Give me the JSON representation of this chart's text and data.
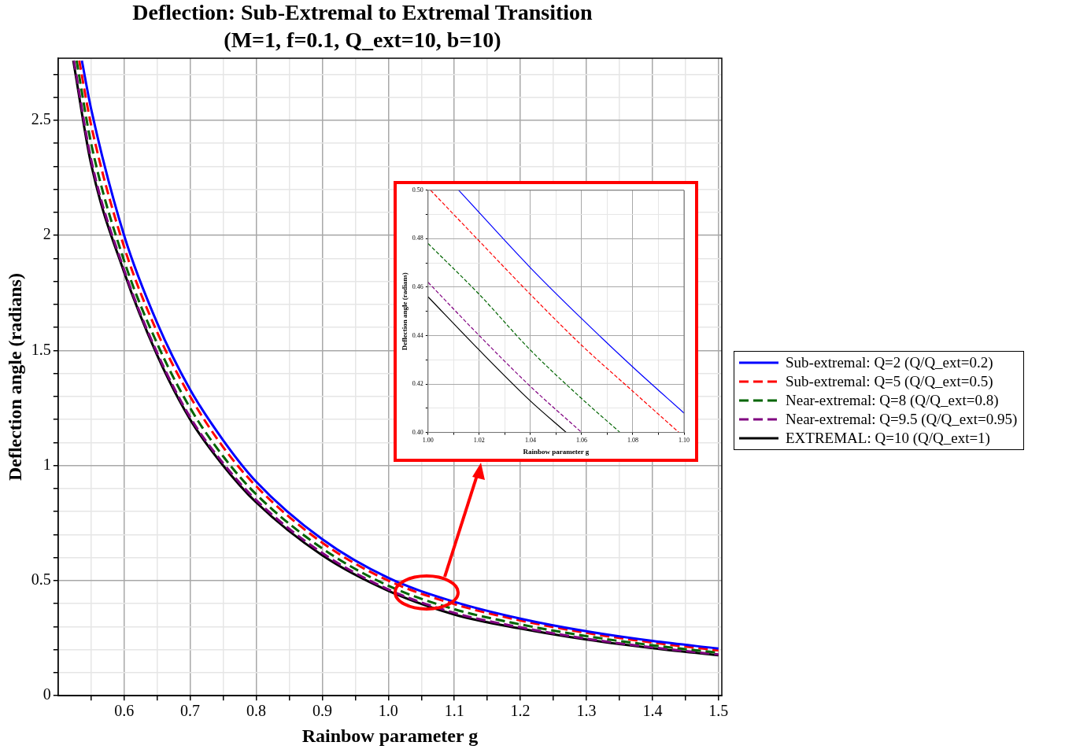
{
  "chart_data": [
    {
      "type": "line",
      "title": "Deflection: Sub-Extremal to Extremal Transition\n(M=1, f=0.1, Q_ext=10, b=10)",
      "xlabel": "Rainbow parameter g",
      "ylabel": "Deflection angle (radians)",
      "series": [
        {
          "name": "Sub-extremal: Q=2 (Q/Q_ext=0.2)",
          "color": "#0000ff",
          "line_style": "solid",
          "x": [
            0.536,
            0.55,
            0.6,
            0.65,
            0.7,
            0.75,
            0.8,
            0.9,
            1.0,
            1.1,
            1.2,
            1.3,
            1.4,
            1.5
          ],
          "values": [
            2.76,
            2.55,
            2.0,
            1.62,
            1.33,
            1.11,
            0.93,
            0.68,
            0.512,
            0.408,
            0.335,
            0.28,
            0.238,
            0.205
          ]
        },
        {
          "name": "Sub-extremal: Q=5 (Q/Q_ext=0.5)",
          "color": "#ff0000",
          "line_style": "dashed",
          "x": [
            0.532,
            0.55,
            0.6,
            0.65,
            0.7,
            0.75,
            0.8,
            0.9,
            1.0,
            1.1,
            1.2,
            1.3,
            1.4,
            1.5
          ],
          "values": [
            2.76,
            2.48,
            1.95,
            1.58,
            1.3,
            1.08,
            0.91,
            0.665,
            0.5,
            0.398,
            0.327,
            0.273,
            0.231,
            0.197
          ]
        },
        {
          "name": "Near-extremal: Q=8 (Q/Q_ext=0.8)",
          "color": "#006400",
          "line_style": "dashed",
          "x": [
            0.528,
            0.55,
            0.6,
            0.65,
            0.7,
            0.75,
            0.8,
            0.9,
            1.0,
            1.1,
            1.2,
            1.3,
            1.4,
            1.5
          ],
          "values": [
            2.76,
            2.4,
            1.89,
            1.53,
            1.25,
            1.04,
            0.875,
            0.64,
            0.478,
            0.376,
            0.31,
            0.259,
            0.219,
            0.187
          ]
        },
        {
          "name": "Near-extremal: Q=9.5 (Q/Q_ext=0.95)",
          "color": "#800080",
          "line_style": "dashed",
          "x": [
            0.524,
            0.55,
            0.6,
            0.65,
            0.7,
            0.75,
            0.8,
            0.9,
            1.0,
            1.1,
            1.2,
            1.3,
            1.4,
            1.5
          ],
          "values": [
            2.76,
            2.33,
            1.85,
            1.49,
            1.21,
            1.01,
            0.85,
            0.62,
            0.462,
            0.36,
            0.297,
            0.248,
            0.21,
            0.179
          ]
        },
        {
          "name": "EXTREMAL: Q=10 (Q/Q_ext=1)",
          "color": "#000000",
          "line_style": "solid",
          "x": [
            0.523,
            0.55,
            0.6,
            0.65,
            0.7,
            0.75,
            0.8,
            0.9,
            1.0,
            1.1,
            1.2,
            1.3,
            1.4,
            1.5
          ],
          "values": [
            2.76,
            2.31,
            1.84,
            1.48,
            1.2,
            1.0,
            0.84,
            0.61,
            0.456,
            0.353,
            0.292,
            0.244,
            0.207,
            0.176
          ]
        }
      ],
      "xlim": [
        0.5,
        1.505
      ],
      "ylim": [
        0,
        2.77
      ],
      "xticks": [
        {
          "value": 0.55,
          "label": null
        },
        0.6,
        {
          "value": 0.65,
          "label": null
        },
        0.7,
        {
          "value": 0.75,
          "label": null
        },
        0.8,
        {
          "value": 0.85,
          "label": null
        },
        0.9,
        {
          "value": 0.95,
          "label": null
        },
        {
          "value": 1,
          "label": "1.0"
        },
        {
          "value": 1.05,
          "label": null
        },
        1.1,
        {
          "value": 1.15,
          "label": null
        },
        1.2,
        {
          "value": 1.25,
          "label": null
        },
        1.3,
        {
          "value": 1.35,
          "label": null
        },
        1.4,
        {
          "value": 1.45,
          "label": null
        },
        1.5
      ],
      "yticks": [
        0,
        {
          "value": 0.1,
          "label": null
        },
        {
          "value": 0.2,
          "label": null
        },
        {
          "value": 0.3,
          "label": null
        },
        {
          "value": 0.4,
          "label": null
        },
        0.5,
        {
          "value": 0.6,
          "label": null
        },
        {
          "value": 0.7,
          "label": null
        },
        {
          "value": 0.8,
          "label": null
        },
        {
          "value": 0.9,
          "label": null
        },
        1,
        {
          "value": 1.1,
          "label": null
        },
        {
          "value": 1.2,
          "label": null
        },
        {
          "value": 1.3,
          "label": null
        },
        {
          "value": 1.4,
          "label": null
        },
        1.5,
        {
          "value": 1.6,
          "label": null
        },
        {
          "value": 1.7,
          "label": null
        },
        {
          "value": 1.8,
          "label": null
        },
        {
          "value": 1.9,
          "label": null
        },
        2,
        {
          "value": 2.1,
          "label": null
        },
        {
          "value": 2.2,
          "label": null
        },
        {
          "value": 2.3,
          "label": null
        },
        {
          "value": 2.4,
          "label": null
        },
        2.5,
        {
          "value": 2.6,
          "label": null
        },
        {
          "value": 2.7,
          "label": null
        }
      ],
      "grid": true,
      "legend": "right"
    },
    {
      "type": "line",
      "xlabel": "Rainbow parameter g",
      "ylabel": "Deflection angle (radians)",
      "series": [
        {
          "color": "#0000ff",
          "line_style": "solid",
          "x": [
            1.012,
            1.04,
            1.06,
            1.08,
            1.1
          ],
          "values": [
            0.5,
            0.468,
            0.447,
            0.427,
            0.408
          ]
        },
        {
          "color": "#ff0000",
          "line_style": "dashed",
          "x": [
            1.001,
            1.02,
            1.04,
            1.06,
            1.08,
            1.098
          ],
          "values": [
            0.5,
            0.479,
            0.457,
            0.436,
            0.417,
            0.4
          ]
        },
        {
          "color": "#006400",
          "line_style": "dashed",
          "x": [
            1.0,
            1.02,
            1.04,
            1.06,
            1.075
          ],
          "values": [
            0.478,
            0.457,
            0.434,
            0.414,
            0.4
          ]
        },
        {
          "color": "#800080",
          "line_style": "dashed",
          "x": [
            1.0,
            1.02,
            1.04,
            1.06
          ],
          "values": [
            0.462,
            0.44,
            0.419,
            0.4
          ]
        },
        {
          "color": "#000000",
          "line_style": "solid",
          "x": [
            1.0,
            1.02,
            1.04,
            1.054
          ],
          "values": [
            0.456,
            0.434,
            0.413,
            0.4
          ]
        }
      ],
      "xlim": [
        1.0,
        1.1
      ],
      "ylim": [
        0.4,
        0.5
      ],
      "xticks": [
        {
          "value": 1,
          "label": "1.00"
        },
        {
          "value": 1.01,
          "label": null
        },
        {
          "value": 1.02,
          "label": "1.02"
        },
        {
          "value": 1.03,
          "label": null
        },
        {
          "value": 1.04,
          "label": "1.04"
        },
        {
          "value": 1.05,
          "label": null
        },
        {
          "value": 1.06,
          "label": "1.06"
        },
        {
          "value": 1.07,
          "label": null
        },
        {
          "value": 1.08,
          "label": "1.08"
        },
        {
          "value": 1.09,
          "label": null
        },
        {
          "value": 1.1,
          "label": "1.10"
        }
      ],
      "yticks": [
        {
          "value": 0.4,
          "label": "0.40"
        },
        {
          "value": 0.41,
          "label": null
        },
        {
          "value": 0.42,
          "label": "0.42"
        },
        {
          "value": 0.43,
          "label": null
        },
        {
          "value": 0.44,
          "label": "0.44"
        },
        {
          "value": 0.45,
          "label": null
        },
        {
          "value": 0.46,
          "label": "0.46"
        },
        {
          "value": 0.47,
          "label": null
        },
        {
          "value": 0.48,
          "label": "0.48"
        },
        {
          "value": 0.49,
          "label": null
        },
        {
          "value": 0.5,
          "label": "0.50"
        }
      ],
      "grid": true
    }
  ]
}
